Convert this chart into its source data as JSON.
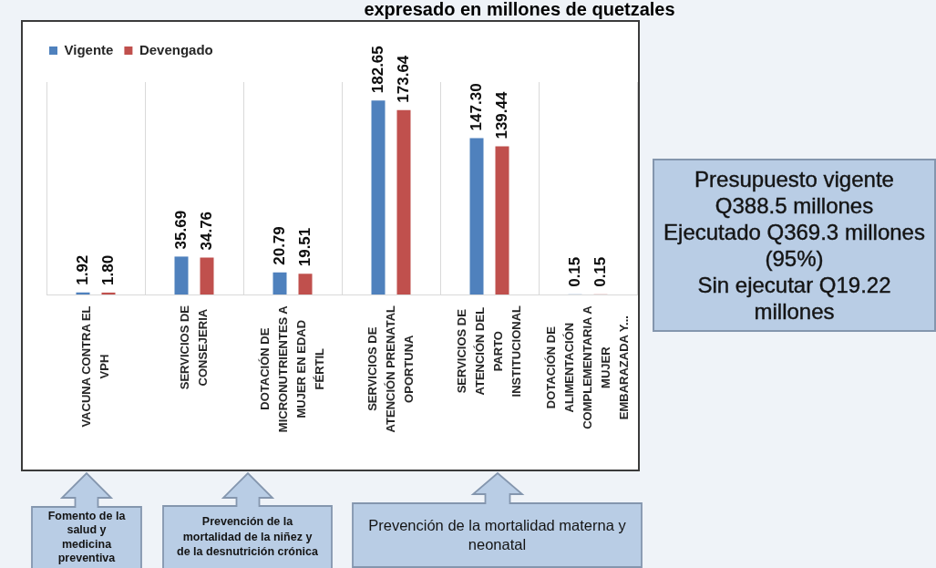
{
  "chart_data": {
    "type": "bar",
    "title": "expresado en millones de quetzales",
    "categories": [
      "VACUNA CONTRA EL VPH",
      "SERVICIOS DE CONSEJERIA",
      "DOTACIÓN DE MICRONUTRIENTES A MUJER EN EDAD FÉRTIL",
      "SERVICIOS DE ATENCIÓN PRENATAL OPORTUNA",
      "SERVICIOS DE ATENCIÓN DEL PARTO INSTITUCIONAL",
      "DOTACIÓN DE ALIMENTACIÓN COMPLEMENTARIA A MUJER EMBARAZADA Y..."
    ],
    "series": [
      {
        "name": "Vigente",
        "color": "#4f81bd",
        "values": [
          1.92,
          35.69,
          20.79,
          182.65,
          147.3,
          0.15
        ],
        "value_labels": [
          "1.92",
          "35.69",
          "20.79",
          "182.65",
          "147.30",
          "0.15"
        ]
      },
      {
        "name": "Devengado",
        "color": "#c0504d",
        "values": [
          1.8,
          34.76,
          19.51,
          173.64,
          139.44,
          0.15
        ],
        "value_labels": [
          "1.80",
          "34.76",
          "19.51",
          "173.64",
          "139.44",
          "0.15"
        ]
      }
    ],
    "annotations": [
      "Presupuesto vigente Q388.5 millones",
      "Ejecutado Q369.3 millones (95%)",
      "Sin ejecutar Q19.22 millones",
      "Fomento de la salud y medicina preventiva",
      "Prevención de la mortalidad de la niñez y de la desnutrición crónica",
      "Prevención de la mortalidad materna y neonatal"
    ],
    "grid": "x",
    "legend": "top left",
    "tick_labels": "x"
  }
}
